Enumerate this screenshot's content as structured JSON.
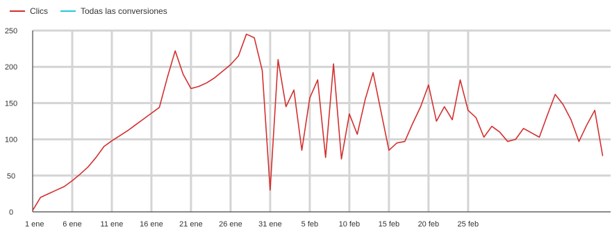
{
  "chart_data": {
    "type": "line",
    "title": "",
    "xlabel": "",
    "ylabel": "",
    "ylim": [
      0,
      250
    ],
    "yticks": [
      0,
      50,
      100,
      150,
      200,
      250
    ],
    "grid": true,
    "legend_position": "top-left",
    "x_tick_labels": [
      "1 ene",
      "6 ene",
      "11 ene",
      "16 ene",
      "21 ene",
      "26 ene",
      "31 ene",
      "5 feb",
      "10 feb",
      "15 feb",
      "20 feb",
      "25 feb"
    ],
    "series": [
      {
        "name": "Clics",
        "color": "#d32f2f",
        "values": [
          2,
          20,
          25,
          30,
          35,
          43,
          52,
          62,
          75,
          90,
          98,
          105,
          112,
          120,
          128,
          136,
          144,
          185,
          222,
          190,
          170,
          173,
          178,
          185,
          194,
          203,
          215,
          245,
          240,
          195,
          30,
          210,
          145,
          168,
          85,
          157,
          182,
          75,
          204,
          73,
          135,
          107,
          155,
          192,
          138,
          85,
          95,
          97,
          122,
          145,
          175,
          125,
          145,
          127,
          182,
          140,
          130,
          103,
          118,
          110,
          97,
          100,
          115,
          109,
          103,
          133,
          162,
          148,
          127,
          97,
          120,
          140,
          77
        ]
      },
      {
        "name": "Todas las conversiones",
        "color": "#26c6da",
        "values": []
      }
    ]
  }
}
